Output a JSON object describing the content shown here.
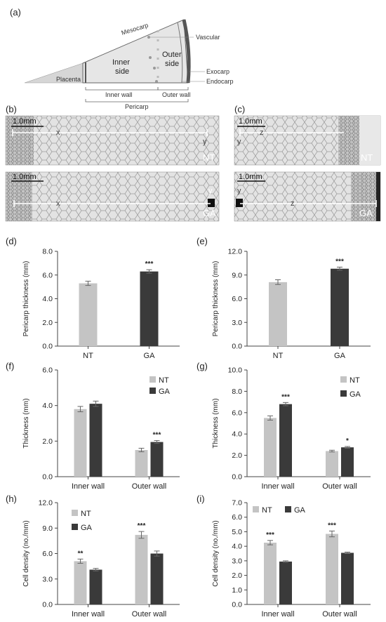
{
  "colors": {
    "nt": "#c4c4c4",
    "ga": "#3a3a3a",
    "axis": "#444444",
    "micro_bg": "#d9d9d9"
  },
  "panel_a": {
    "label": "(a)",
    "labels": {
      "mesocarp": "Mesocarp",
      "vascular": "Vascular",
      "inner_side_1": "Inner",
      "inner_side_2": "side",
      "outer_side_1": "Outer",
      "outer_side_2": "side",
      "exocarp": "Exocarp",
      "endocarp": "Endocarp",
      "placenta": "Placenta",
      "inner_wall": "Inner wall",
      "outer_wall": "Outer wall",
      "pericarp": "Pericarp"
    }
  },
  "micrographs": {
    "b_label": "(b)",
    "c_label": "(c)",
    "scale": "1.0mm",
    "treatments": [
      "NT",
      "GA"
    ],
    "letters": {
      "x": "x",
      "y": "y",
      "z": "z"
    }
  },
  "charts": [
    {
      "id": "d",
      "label": "(d)",
      "type": "bar",
      "ylabel": "Pericarp thickness (mm)",
      "ylim": [
        0,
        8
      ],
      "yticks": [
        "0.0",
        "2.0",
        "4.0",
        "6.0",
        "8.0"
      ],
      "categories": [
        "NT",
        "GA"
      ],
      "values": [
        5.3,
        6.3
      ],
      "errors": [
        0.18,
        0.15
      ],
      "significance": [
        "",
        "***"
      ]
    },
    {
      "id": "e",
      "label": "(e)",
      "type": "bar",
      "ylabel": "Pericarp thickness (mm)",
      "ylim": [
        0,
        12
      ],
      "yticks": [
        "0.0",
        "3.0",
        "6.0",
        "9.0",
        "12.0"
      ],
      "categories": [
        "NT",
        "GA"
      ],
      "values": [
        8.1,
        9.8
      ],
      "errors": [
        0.3,
        0.2
      ],
      "significance": [
        "",
        "***"
      ]
    },
    {
      "id": "f",
      "label": "(f)",
      "type": "bar",
      "ylabel": "Thickness (mm)",
      "ylim": [
        0,
        6
      ],
      "yticks": [
        "0.0",
        "2.0",
        "4.0",
        "6.0"
      ],
      "categories": [
        "Inner wall",
        "Outer wall"
      ],
      "legend": [
        "NT",
        "GA"
      ],
      "series": [
        {
          "name": "NT",
          "values": [
            3.8,
            1.5
          ],
          "errors": [
            0.15,
            0.1
          ],
          "significance": [
            "",
            ""
          ]
        },
        {
          "name": "GA",
          "values": [
            4.1,
            1.95
          ],
          "errors": [
            0.15,
            0.08
          ],
          "significance": [
            "",
            "***"
          ]
        }
      ]
    },
    {
      "id": "g",
      "label": "(g)",
      "type": "bar",
      "ylabel": "Thickness (mm)",
      "ylim": [
        0,
        10
      ],
      "yticks": [
        "0.0",
        "2.0",
        "4.0",
        "6.0",
        "8.0",
        "10.0"
      ],
      "categories": [
        "Inner wall",
        "Outer wall"
      ],
      "legend": [
        "NT",
        "GA"
      ],
      "series": [
        {
          "name": "NT",
          "values": [
            5.5,
            2.4
          ],
          "errors": [
            0.2,
            0.08
          ],
          "significance": [
            "",
            ""
          ]
        },
        {
          "name": "GA",
          "values": [
            6.8,
            2.75
          ],
          "errors": [
            0.15,
            0.08
          ],
          "significance": [
            "***",
            "*"
          ]
        }
      ]
    },
    {
      "id": "h",
      "label": "(h)",
      "type": "bar",
      "ylabel": "Cell density (no./mm)",
      "ylim": [
        0,
        12
      ],
      "yticks": [
        "0.0",
        "3.0",
        "6.0",
        "9.0",
        "12.0"
      ],
      "categories": [
        "Inner wall",
        "Outer wall"
      ],
      "legend": [
        "NT",
        "GA"
      ],
      "series": [
        {
          "name": "NT",
          "values": [
            5.1,
            8.2
          ],
          "errors": [
            0.25,
            0.4
          ],
          "significance": [
            "**",
            "***"
          ]
        },
        {
          "name": "GA",
          "values": [
            4.1,
            6.0
          ],
          "errors": [
            0.15,
            0.3
          ],
          "significance": [
            "",
            ""
          ]
        }
      ]
    },
    {
      "id": "i",
      "label": "(i)",
      "type": "bar",
      "ylabel": "Cell density (no./mm)",
      "ylim": [
        0,
        7
      ],
      "yticks": [
        "0.0",
        "1.0",
        "2.0",
        "3.0",
        "4.0",
        "5.0",
        "6.0",
        "7.0"
      ],
      "categories": [
        "Inner wall",
        "Outer wall"
      ],
      "legend": [
        "NT",
        "GA"
      ],
      "series": [
        {
          "name": "NT",
          "values": [
            4.25,
            4.85
          ],
          "errors": [
            0.15,
            0.2
          ],
          "significance": [
            "***",
            "***"
          ]
        },
        {
          "name": "GA",
          "values": [
            2.95,
            3.55
          ],
          "errors": [
            0.05,
            0.05
          ],
          "significance": [
            "",
            ""
          ]
        }
      ]
    }
  ]
}
